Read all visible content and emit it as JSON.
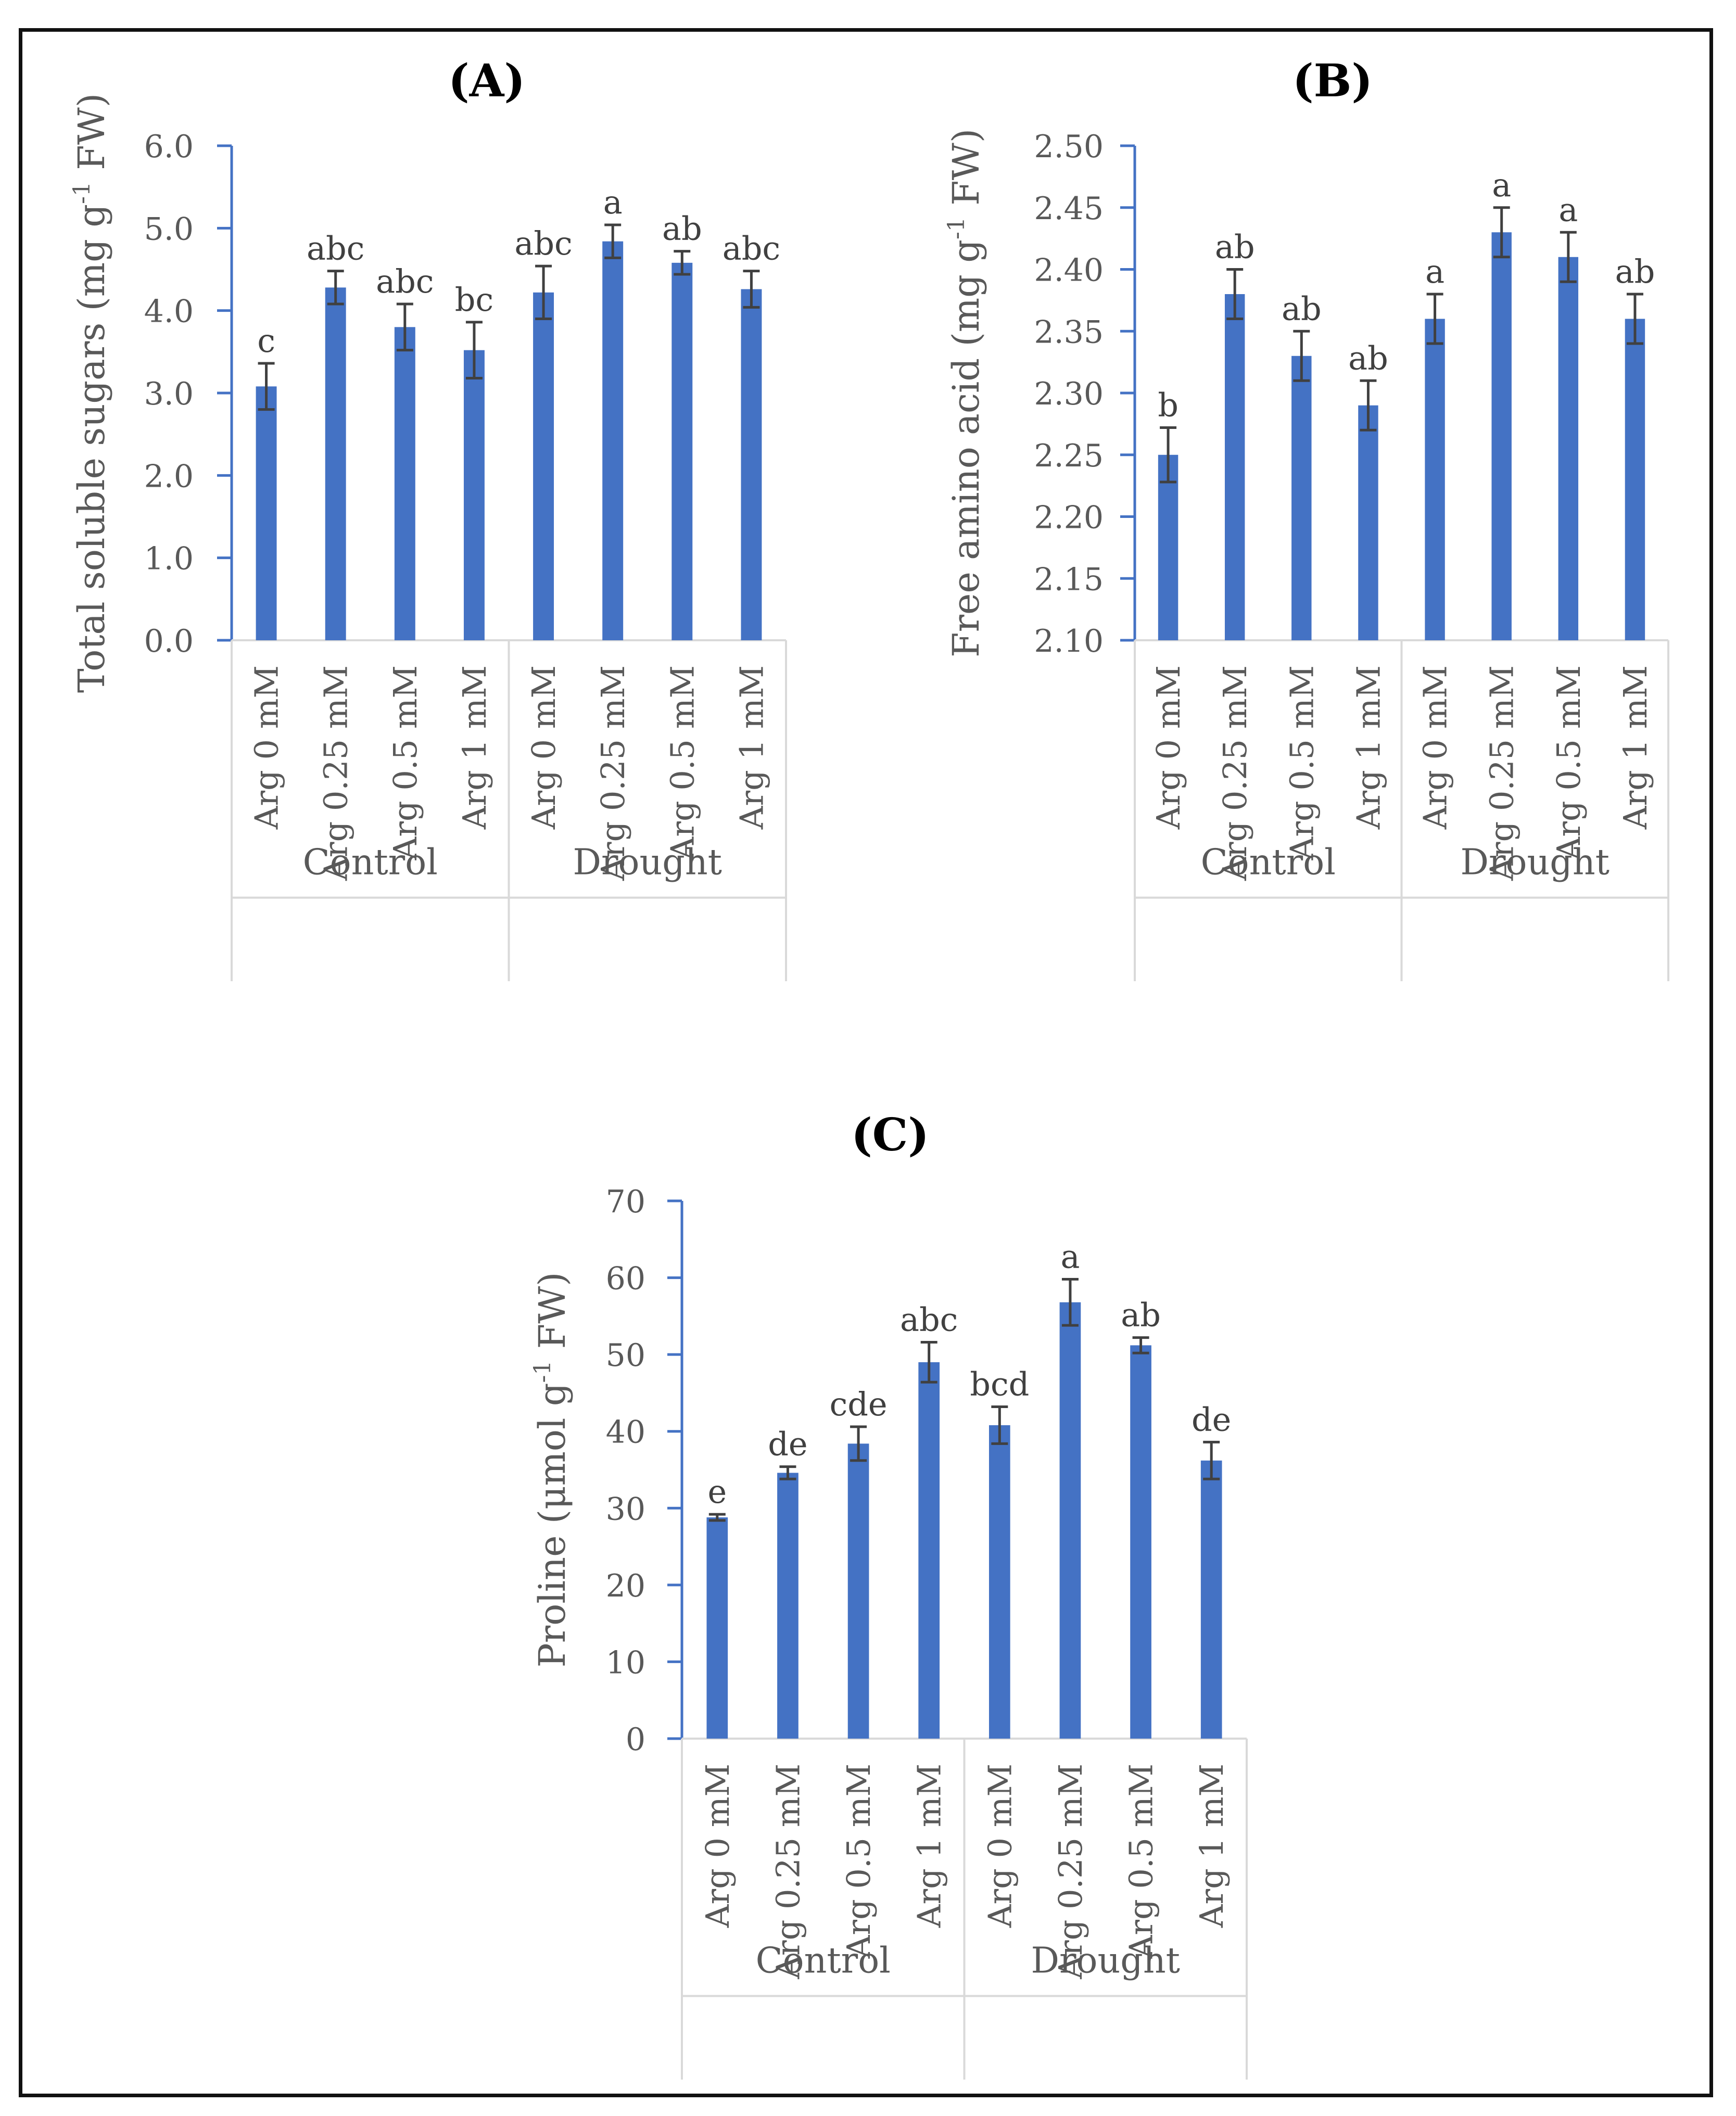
{
  "figure": {
    "bar_color": "#4472C4",
    "axis_color": "#4472C4",
    "error_color": "#404040",
    "text_color": "#595959"
  },
  "chart_data": [
    {
      "panel": "A",
      "type": "bar",
      "title": "(A)",
      "ylabel_main": "Total soluble sugars (mg g",
      "ylabel_sup": "-1",
      "ylabel_tail": " FW)",
      "ylim": [
        0,
        6
      ],
      "yticks": [
        "0.0",
        "1.0",
        "2.0",
        "3.0",
        "4.0",
        "5.0",
        "6.0"
      ],
      "ytick_values": [
        0,
        1,
        2,
        3,
        4,
        5,
        6
      ],
      "categories": [
        "Arg 0 mM",
        "Arg 0.25 mM",
        "Arg 0.5 mM",
        "Arg 1 mM",
        "Arg 0 mM",
        "Arg 0.25 mM",
        "Arg 0.5 mM",
        "Arg 1 mM"
      ],
      "groups": [
        "Control",
        "Drought"
      ],
      "values": [
        3.08,
        4.28,
        3.8,
        3.52,
        4.22,
        4.84,
        4.58,
        4.26
      ],
      "errors": [
        0.28,
        0.2,
        0.28,
        0.34,
        0.32,
        0.2,
        0.14,
        0.22
      ],
      "letters": [
        "c",
        "abc",
        "abc",
        "bc",
        "abc",
        "a",
        "ab",
        "abc"
      ]
    },
    {
      "panel": "B",
      "type": "bar",
      "title": "(B)",
      "ylabel_main": "Free amino acid (mg g",
      "ylabel_sup": "-1",
      "ylabel_tail": " FW)",
      "ylim": [
        2.1,
        2.5
      ],
      "yticks": [
        "2.10",
        "2.15",
        "2.20",
        "2.25",
        "2.30",
        "2.35",
        "2.40",
        "2.45",
        "2.50"
      ],
      "ytick_values": [
        2.1,
        2.15,
        2.2,
        2.25,
        2.3,
        2.35,
        2.4,
        2.45,
        2.5
      ],
      "categories": [
        "Arg 0 mM",
        "Arg 0.25 mM",
        "Arg 0.5 mM",
        "Arg 1 mM",
        "Arg 0 mM",
        "Arg 0.25 mM",
        "Arg 0.5 mM",
        "Arg 1 mM"
      ],
      "groups": [
        "Control",
        "Drought"
      ],
      "values": [
        2.25,
        2.38,
        2.33,
        2.29,
        2.36,
        2.43,
        2.41,
        2.36
      ],
      "errors": [
        0.022,
        0.02,
        0.02,
        0.02,
        0.02,
        0.02,
        0.02,
        0.02
      ],
      "letters": [
        "b",
        "ab",
        "ab",
        "ab",
        "a",
        "a",
        "a",
        "ab"
      ]
    },
    {
      "panel": "C",
      "type": "bar",
      "title": "(C)",
      "ylabel_main": "Proline (μmol g",
      "ylabel_sup": "-1",
      "ylabel_tail": " FW)",
      "ylim": [
        0,
        70
      ],
      "yticks": [
        "0",
        "10",
        "20",
        "30",
        "40",
        "50",
        "60",
        "70"
      ],
      "ytick_values": [
        0,
        10,
        20,
        30,
        40,
        50,
        60,
        70
      ],
      "categories": [
        "Arg 0 mM",
        "Arg 0.25 mM",
        "Arg 0.5 mM",
        "Arg 1 mM",
        "Arg 0 mM",
        "Arg 0.25 mM",
        "Arg 0.5 mM",
        "Arg 1 mM"
      ],
      "groups": [
        "Control",
        "Drought"
      ],
      "values": [
        28.8,
        34.6,
        38.4,
        49.0,
        40.8,
        56.8,
        51.2,
        36.2
      ],
      "errors": [
        0.4,
        0.8,
        2.2,
        2.6,
        2.4,
        3.0,
        1.0,
        2.4
      ],
      "letters": [
        "e",
        "de",
        "cde",
        "abc",
        "bcd",
        "a",
        "ab",
        "de"
      ]
    }
  ]
}
